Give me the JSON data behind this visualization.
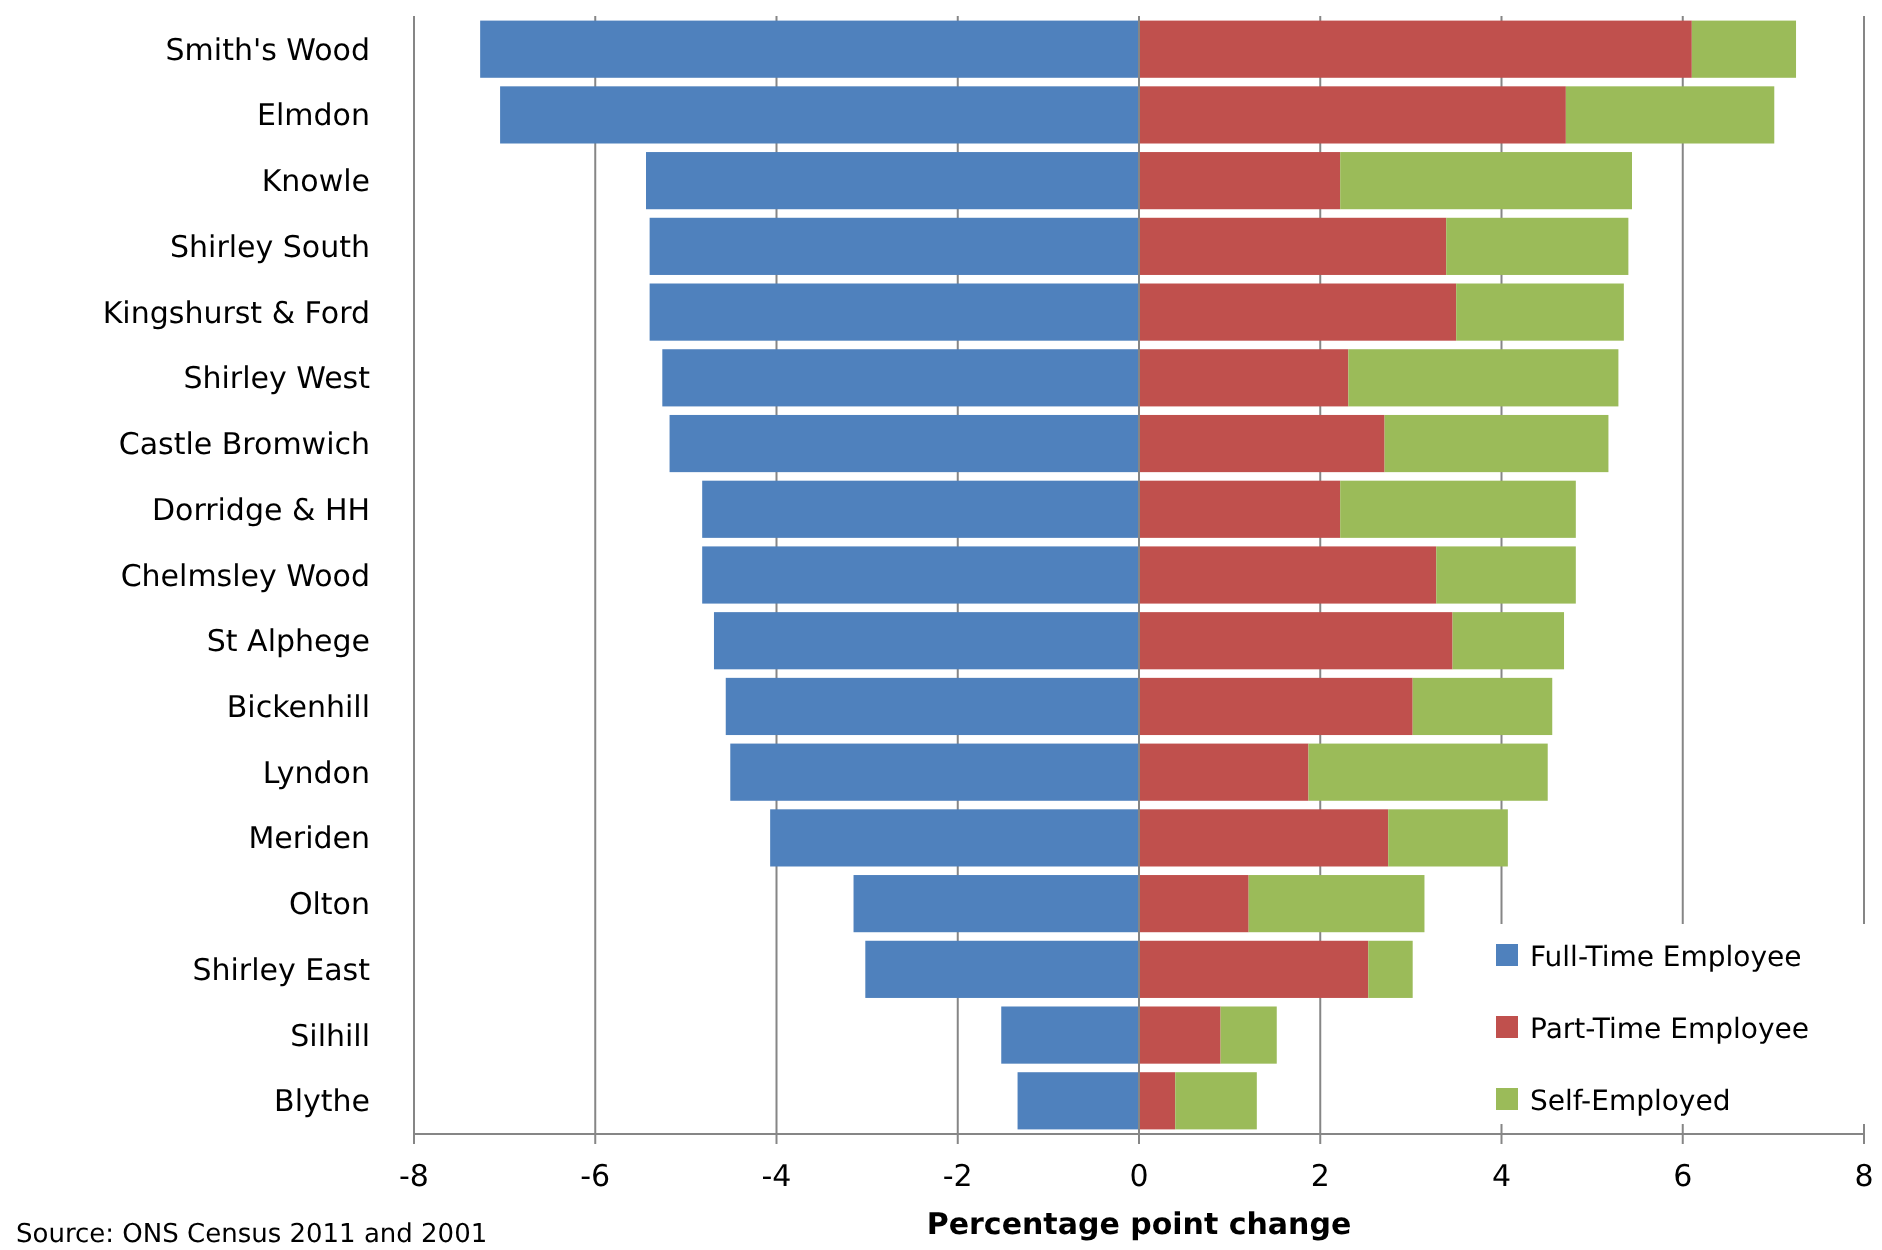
{
  "chart_data": {
    "type": "bar",
    "orientation": "horizontal",
    "stacked": true,
    "categories": [
      "Smith's Wood",
      "Elmdon",
      "Knowle",
      "Shirley South",
      "Kingshurst & Ford",
      "Shirley West",
      "Castle Bromwich",
      "Dorridge & HH",
      "Chelmsley Wood",
      "St Alphege",
      "Bickenhill",
      "Lyndon",
      "Meriden",
      "Olton",
      "Shirley East",
      "Silhill",
      "Blythe"
    ],
    "series": [
      {
        "name": "Full-Time Employee",
        "color": "#4f81bd",
        "values": [
          -7.27,
          -7.05,
          -5.44,
          -5.4,
          -5.4,
          -5.26,
          -5.18,
          -4.82,
          -4.82,
          -4.69,
          -4.56,
          -4.51,
          -4.07,
          -3.15,
          -3.02,
          -1.52,
          -1.34
        ]
      },
      {
        "name": "Part-Time Employee",
        "color": "#c0504d",
        "values": [
          6.1,
          4.71,
          2.22,
          3.39,
          3.5,
          2.31,
          2.71,
          2.22,
          3.28,
          3.46,
          3.02,
          1.87,
          2.75,
          1.21,
          2.53,
          0.9,
          0.4
        ]
      },
      {
        "name": "Self-Employed",
        "color": "#9bbb59",
        "values": [
          1.15,
          2.3,
          3.22,
          2.01,
          1.85,
          2.98,
          2.47,
          2.6,
          1.54,
          1.23,
          1.54,
          2.64,
          1.32,
          1.94,
          0.49,
          0.62,
          0.9
        ]
      }
    ],
    "xlim": [
      -8,
      8
    ],
    "xticks": [
      -8,
      -6,
      -4,
      -2,
      0,
      2,
      4,
      6,
      8
    ],
    "xlabel": "Percentage point change",
    "grid": "x",
    "legend": "bottom right",
    "annotations": [
      "Source: ONS Census 2011 and 2001"
    ]
  }
}
